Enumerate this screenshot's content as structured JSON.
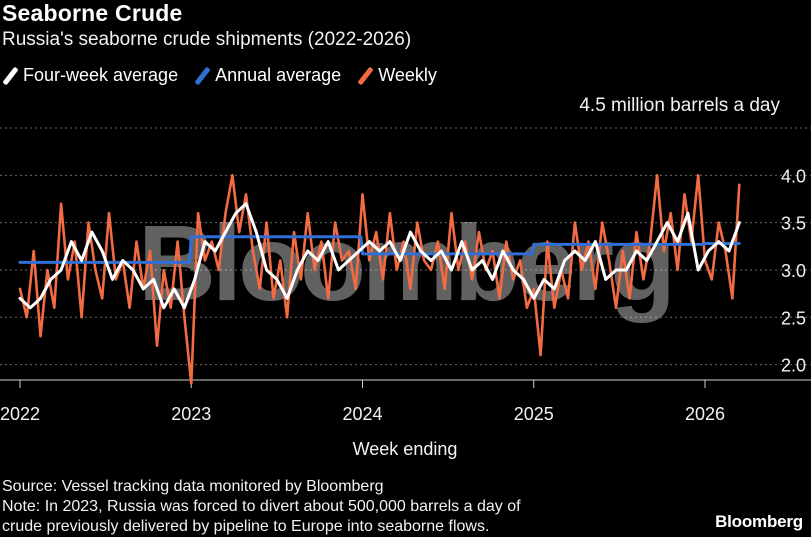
{
  "header": {
    "title": "Seaborne Crude",
    "subtitle": "Russia's seaborne crude shipments (2022-2026)"
  },
  "legend": [
    {
      "label": "Four-week average",
      "color": "#ffffff"
    },
    {
      "label": "Annual average",
      "color": "#2f6fd6"
    },
    {
      "label": "Weekly",
      "color": "#f26b43"
    }
  ],
  "footer": {
    "source": "Source: Vessel tracking data monitored by Bloomberg",
    "note_line1": "Note: In 2023, Russia was forced to divert about 500,000 barrels a day of",
    "note_line2": "crude previously delivered by pipeline to Europe into seaborne flows.",
    "brand": "Bloomberg"
  },
  "watermark": "Bloomberg",
  "chart_data": {
    "type": "line",
    "title": "Seaborne Crude",
    "subtitle": "Russia's seaborne crude shipments (2022-2026)",
    "ylabel": "4.5 million barrels a day",
    "xlabel": "Week ending",
    "ylim": [
      1.7,
      4.5
    ],
    "xlim": [
      2022.0,
      2026.35
    ],
    "x_ticks": [
      2022,
      2023,
      2024,
      2025,
      2026
    ],
    "y_ticks": [
      2.0,
      2.5,
      3.0,
      3.5,
      4.0
    ],
    "y_tick_labels": [
      "2.0",
      "2.5",
      "3.0",
      "3.5",
      "4.0"
    ],
    "x_tick_labels": [
      "2022",
      "2023",
      "2024",
      "2025",
      "2026"
    ],
    "grid": "horizontal dotted",
    "series": [
      {
        "name": "Weekly",
        "color": "#f26b43",
        "x": [
          2022.0,
          2022.04,
          2022.08,
          2022.12,
          2022.16,
          2022.2,
          2022.24,
          2022.28,
          2022.32,
          2022.36,
          2022.4,
          2022.44,
          2022.48,
          2022.52,
          2022.56,
          2022.6,
          2022.64,
          2022.68,
          2022.72,
          2022.76,
          2022.8,
          2022.84,
          2022.88,
          2022.92,
          2022.96,
          2023.0,
          2023.04,
          2023.08,
          2023.12,
          2023.16,
          2023.2,
          2023.24,
          2023.28,
          2023.32,
          2023.36,
          2023.4,
          2023.44,
          2023.48,
          2023.52,
          2023.56,
          2023.6,
          2023.64,
          2023.68,
          2023.72,
          2023.76,
          2023.8,
          2023.84,
          2023.88,
          2023.92,
          2023.96,
          2024.0,
          2024.04,
          2024.08,
          2024.12,
          2024.16,
          2024.2,
          2024.24,
          2024.28,
          2024.32,
          2024.36,
          2024.4,
          2024.44,
          2024.48,
          2024.52,
          2024.56,
          2024.6,
          2024.64,
          2024.68,
          2024.72,
          2024.76,
          2024.8,
          2024.84,
          2024.88,
          2024.92,
          2024.96,
          2025.0,
          2025.04,
          2025.08,
          2025.12,
          2025.16,
          2025.2,
          2025.24,
          2025.28,
          2025.32,
          2025.36,
          2025.4,
          2025.44,
          2025.48,
          2025.52,
          2025.56,
          2025.6,
          2025.64,
          2025.68,
          2025.72,
          2025.76,
          2025.8,
          2025.84,
          2025.88,
          2025.92,
          2025.96,
          2026.0,
          2026.04,
          2026.08,
          2026.12,
          2026.16,
          2026.2
        ],
        "values": [
          2.8,
          2.5,
          3.2,
          2.3,
          3.0,
          2.6,
          3.7,
          2.9,
          3.3,
          2.5,
          3.5,
          3.0,
          2.7,
          3.6,
          2.9,
          3.1,
          2.6,
          3.3,
          2.8,
          3.2,
          2.2,
          3.0,
          2.6,
          3.3,
          2.5,
          1.8,
          3.6,
          3.1,
          3.3,
          3.0,
          3.6,
          4.0,
          3.4,
          3.8,
          3.2,
          2.8,
          3.5,
          2.7,
          3.1,
          2.5,
          3.4,
          2.9,
          3.6,
          3.0,
          3.3,
          2.7,
          3.5,
          3.1,
          3.2,
          2.8,
          3.8,
          3.1,
          3.4,
          2.9,
          3.6,
          3.0,
          3.3,
          2.8,
          3.5,
          3.1,
          3.0,
          3.3,
          2.8,
          3.6,
          3.0,
          3.3,
          2.9,
          3.4,
          3.0,
          3.2,
          2.7,
          3.3,
          2.9,
          3.1,
          2.6,
          2.8,
          2.1,
          3.3,
          2.6,
          3.0,
          2.7,
          3.5,
          3.0,
          3.3,
          2.8,
          3.5,
          3.1,
          2.6,
          3.2,
          2.7,
          3.4,
          2.9,
          3.3,
          4.0,
          3.2,
          3.6,
          3.0,
          3.8,
          3.3,
          4.0,
          3.1,
          2.9,
          3.5,
          3.2,
          2.7,
          3.9
        ]
      },
      {
        "name": "Four-week average",
        "color": "#ffffff",
        "x": [
          2022.0,
          2022.06,
          2022.12,
          2022.18,
          2022.24,
          2022.3,
          2022.36,
          2022.42,
          2022.48,
          2022.54,
          2022.6,
          2022.66,
          2022.72,
          2022.78,
          2022.84,
          2022.9,
          2022.96,
          2023.02,
          2023.08,
          2023.14,
          2023.2,
          2023.26,
          2023.32,
          2023.38,
          2023.44,
          2023.5,
          2023.56,
          2023.62,
          2023.68,
          2023.74,
          2023.8,
          2023.86,
          2023.92,
          2023.98,
          2024.04,
          2024.1,
          2024.16,
          2024.22,
          2024.28,
          2024.34,
          2024.4,
          2024.46,
          2024.52,
          2024.58,
          2024.64,
          2024.7,
          2024.76,
          2024.82,
          2024.88,
          2024.94,
          2025.0,
          2025.06,
          2025.12,
          2025.18,
          2025.24,
          2025.3,
          2025.36,
          2025.42,
          2025.48,
          2025.54,
          2025.6,
          2025.66,
          2025.72,
          2025.78,
          2025.84,
          2025.9,
          2025.96,
          2026.02,
          2026.08,
          2026.14,
          2026.2
        ],
        "values": [
          2.7,
          2.6,
          2.7,
          2.9,
          3.0,
          3.3,
          3.1,
          3.4,
          3.2,
          2.9,
          3.1,
          3.0,
          2.8,
          2.9,
          2.6,
          2.8,
          2.6,
          2.9,
          3.3,
          3.2,
          3.4,
          3.6,
          3.7,
          3.4,
          3.0,
          2.9,
          2.7,
          3.0,
          3.2,
          3.1,
          3.3,
          3.0,
          3.1,
          3.2,
          3.3,
          3.2,
          3.3,
          3.1,
          3.4,
          3.2,
          3.1,
          3.2,
          3.0,
          3.3,
          3.0,
          3.1,
          2.9,
          3.2,
          3.0,
          2.9,
          2.7,
          2.9,
          2.8,
          3.1,
          3.2,
          3.1,
          3.3,
          2.9,
          3.0,
          3.0,
          3.2,
          3.1,
          3.3,
          3.5,
          3.3,
          3.6,
          3.0,
          3.2,
          3.3,
          3.2,
          3.5
        ]
      },
      {
        "name": "Annual average",
        "color": "#2f6fd6",
        "x": [
          2022.0,
          2022.99,
          2023.0,
          2023.99,
          2024.0,
          2024.99,
          2025.0,
          2025.99,
          2026.0,
          2026.2
        ],
        "values": [
          3.08,
          3.08,
          3.35,
          3.35,
          3.17,
          3.17,
          3.27,
          3.27,
          3.28,
          3.28
        ]
      }
    ]
  }
}
